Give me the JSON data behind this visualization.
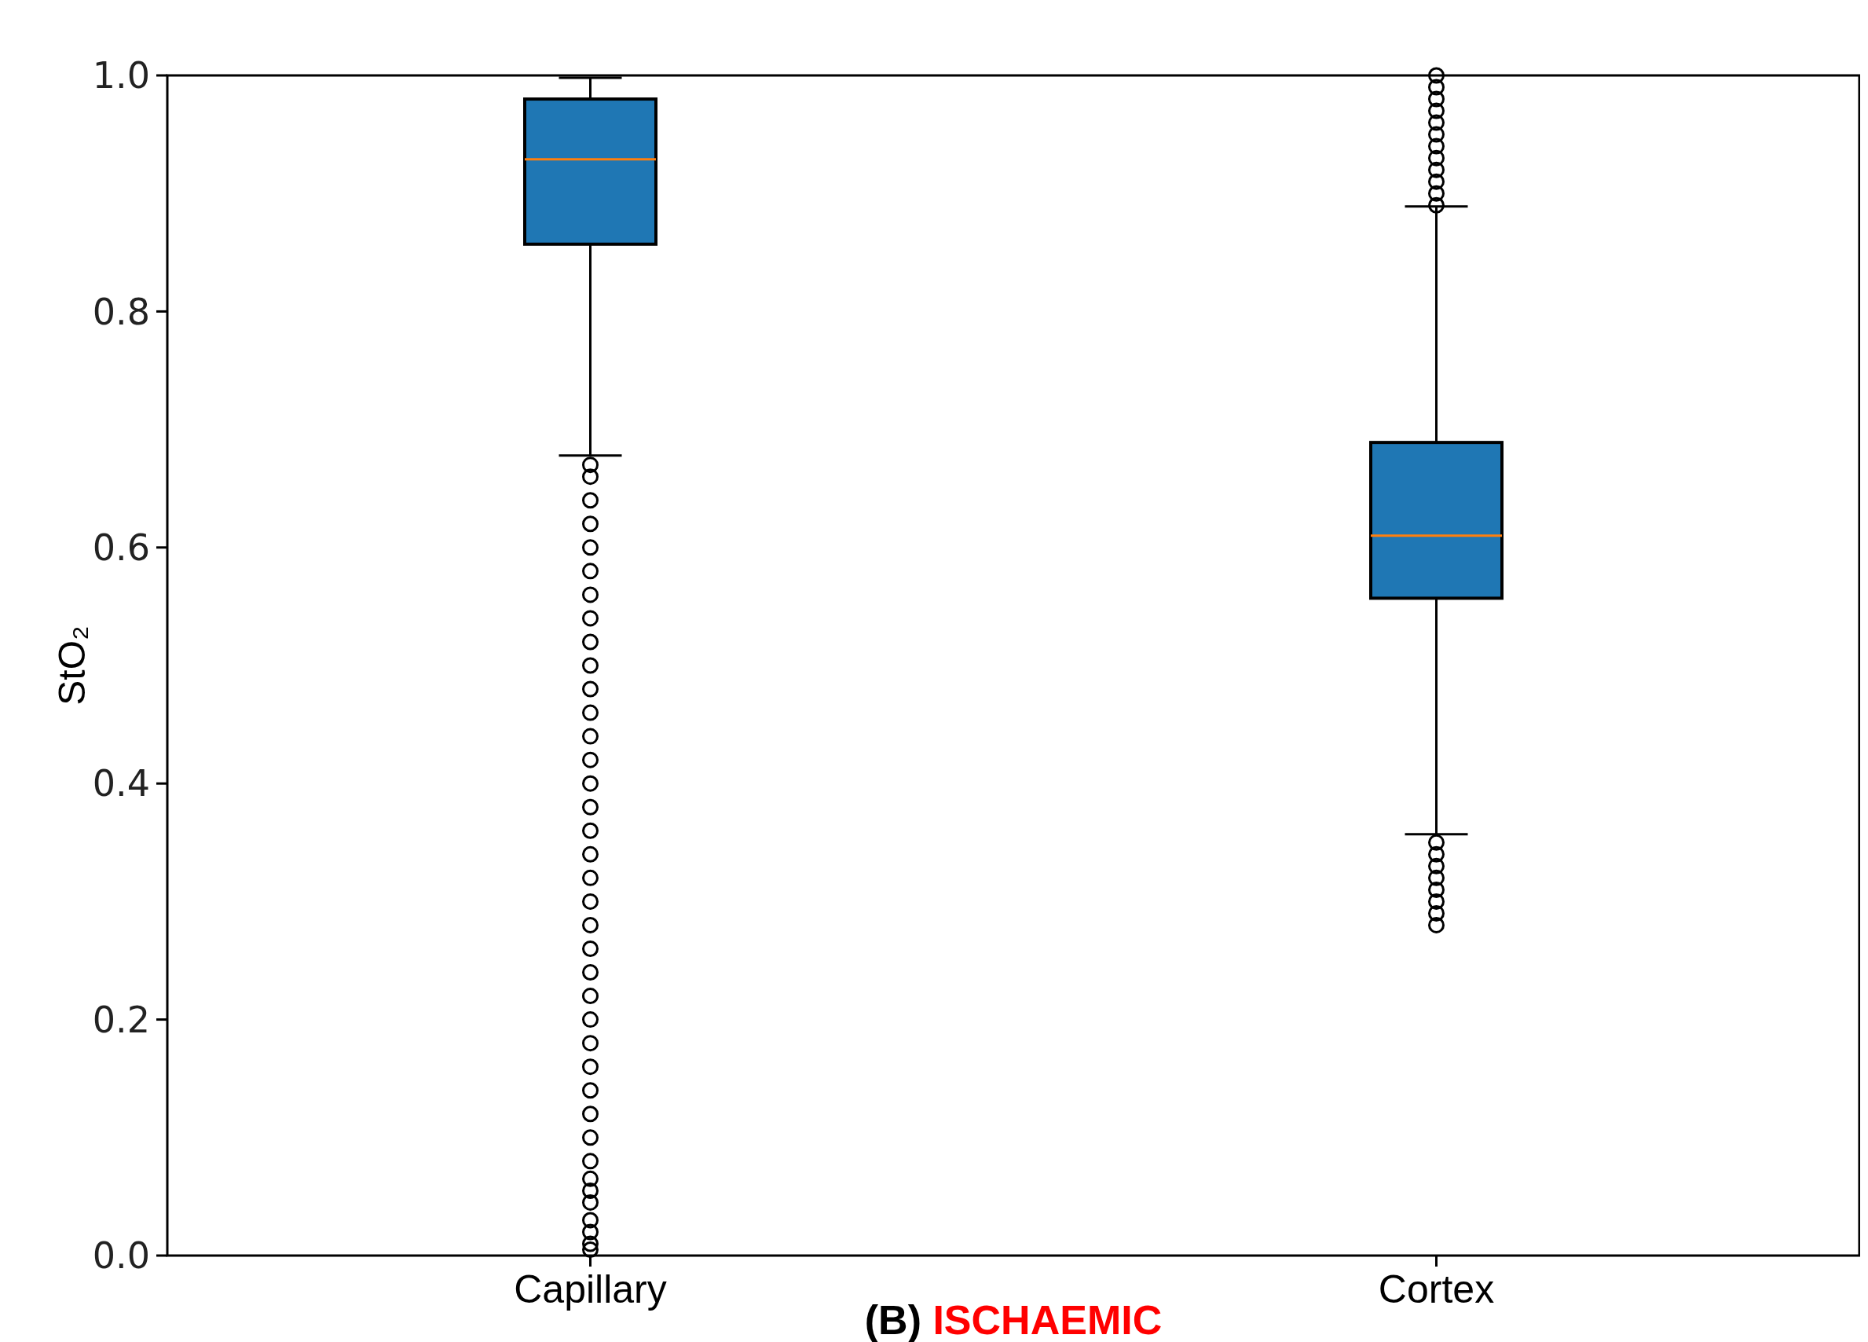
{
  "chart_data": {
    "type": "box",
    "title": "(B) ISCHAEMIC",
    "ylabel": "StO₂",
    "categories": [
      "Capillary",
      "Cortex"
    ],
    "color": "#1f77b4",
    "ylim": [
      0,
      1
    ],
    "yticks": [
      {
        "value": 0,
        "label": "0.0"
      },
      0.2,
      0.4,
      0.6,
      0.8,
      {
        "value": 1,
        "label": "1.0"
      }
    ],
    "boxes": [
      {
        "low": 0.678,
        "q1": 0.857,
        "median": 0.929,
        "q3": 0.98,
        "high": 0.998,
        "outliers": [
          0.005,
          0.01,
          0.02,
          0.03,
          0.045,
          0.055,
          0.065,
          0.08,
          0.1,
          0.12,
          0.14,
          0.16,
          0.18,
          0.2,
          0.22,
          0.24,
          0.26,
          0.28,
          0.3,
          0.32,
          0.34,
          0.36,
          0.38,
          0.4,
          0.42,
          0.44,
          0.46,
          0.48,
          0.5,
          0.52,
          0.54,
          0.56,
          0.58,
          0.6,
          0.62,
          0.64,
          0.66,
          0.67
        ]
      },
      {
        "low": 0.357,
        "q1": 0.557,
        "median": 0.61,
        "q3": 0.689,
        "high": 0.889,
        "outliers": [
          0.28,
          0.29,
          0.3,
          0.31,
          0.32,
          0.33,
          0.34,
          0.35,
          0.89,
          0.9,
          0.91,
          0.92,
          0.93,
          0.94,
          0.95,
          0.96,
          0.97,
          0.98,
          0.99,
          1.0
        ]
      }
    ]
  }
}
